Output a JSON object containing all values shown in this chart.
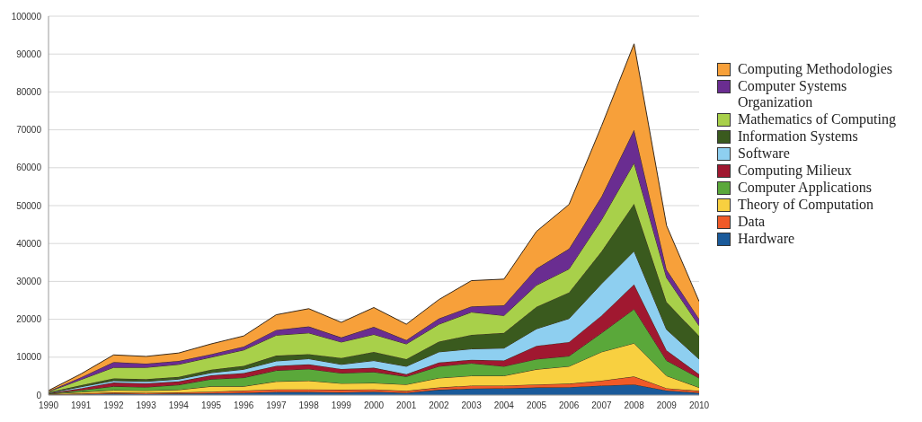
{
  "chart_data": {
    "type": "area",
    "stacked": true,
    "x": [
      1990,
      1991,
      1992,
      1993,
      1994,
      1995,
      1996,
      1997,
      1998,
      1999,
      2000,
      2001,
      2002,
      2003,
      2004,
      2005,
      2006,
      2007,
      2008,
      2009,
      2010
    ],
    "xlim": [
      1990,
      2010
    ],
    "xticks": [
      1990,
      1991,
      1992,
      1993,
      1994,
      1995,
      1996,
      1997,
      1998,
      1999,
      2000,
      2001,
      2002,
      2003,
      2004,
      2005,
      2006,
      2007,
      2008,
      2009,
      2010
    ],
    "ylim": [
      0,
      100000
    ],
    "yticks": [
      0,
      10000,
      20000,
      30000,
      40000,
      50000,
      60000,
      70000,
      80000,
      90000,
      100000
    ],
    "grid": "y",
    "legend": "right",
    "series": [
      {
        "name": "Hardware",
        "color": "#1a5a9a",
        "values": [
          100,
          200,
          400,
          300,
          400,
          500,
          600,
          800,
          800,
          700,
          900,
          600,
          1400,
          1700,
          1800,
          2000,
          2100,
          2500,
          2800,
          1200,
          600
        ]
      },
      {
        "name": "Data",
        "color": "#f05a28",
        "values": [
          100,
          200,
          300,
          300,
          300,
          400,
          600,
          700,
          700,
          700,
          600,
          500,
          600,
          800,
          700,
          800,
          900,
          1300,
          2100,
          600,
          500
        ]
      },
      {
        "name": "Theory of Computation",
        "color": "#f8d040",
        "values": [
          100,
          400,
          600,
          600,
          700,
          1400,
          1100,
          2100,
          2300,
          1700,
          1700,
          1700,
          2500,
          2600,
          2600,
          4000,
          4600,
          7600,
          8800,
          3300,
          900
        ]
      },
      {
        "name": "Computer Applications",
        "color": "#5aa83a",
        "values": [
          100,
          500,
          1000,
          900,
          1300,
          1900,
          2300,
          2900,
          3100,
          2700,
          2900,
          2100,
          3100,
          3300,
          2500,
          2700,
          2700,
          5000,
          9000,
          4000,
          2500
        ]
      },
      {
        "name": "Computing Milieux",
        "color": "#a01830",
        "values": [
          100,
          500,
          1000,
          1000,
          900,
          1000,
          1200,
          1200,
          1200,
          1100,
          1100,
          600,
          1000,
          900,
          1500,
          3500,
          3700,
          4600,
          6500,
          2700,
          1000
        ]
      },
      {
        "name": "Software",
        "color": "#8ecff0",
        "values": [
          100,
          400,
          500,
          500,
          600,
          700,
          1000,
          1300,
          1500,
          1200,
          1900,
          2100,
          2800,
          2900,
          3300,
          4500,
          6200,
          8400,
          8800,
          5500,
          4000
        ]
      },
      {
        "name": "Information Systems",
        "color": "#3a5a1e",
        "values": [
          100,
          400,
          600,
          600,
          600,
          800,
          900,
          1400,
          1200,
          1700,
          2300,
          1900,
          2700,
          3700,
          4000,
          5800,
          6900,
          8500,
          12500,
          7200,
          6100
        ]
      },
      {
        "name": "Mathematics of Computing",
        "color": "#a8d04a",
        "values": [
          200,
          1500,
          2900,
          3100,
          3300,
          3300,
          4200,
          5400,
          5600,
          4200,
          4600,
          4000,
          4600,
          6000,
          4600,
          5700,
          6200,
          8400,
          10800,
          6500,
          2700
        ]
      },
      {
        "name": "Computer Systems Organization",
        "color": "#6a2d91",
        "values": [
          100,
          600,
          1400,
          1000,
          900,
          800,
          900,
          1400,
          1700,
          1200,
          2000,
          1000,
          1500,
          1500,
          2700,
          4400,
          5300,
          6100,
          8700,
          2100,
          1800
        ]
      },
      {
        "name": "Computing Methodologies",
        "color": "#f7a03a",
        "values": [
          200,
          900,
          1900,
          1900,
          2100,
          2700,
          2800,
          4000,
          4700,
          4000,
          5100,
          4200,
          5000,
          6800,
          6900,
          9800,
          11700,
          18600,
          22700,
          11600,
          4600
        ]
      }
    ]
  }
}
